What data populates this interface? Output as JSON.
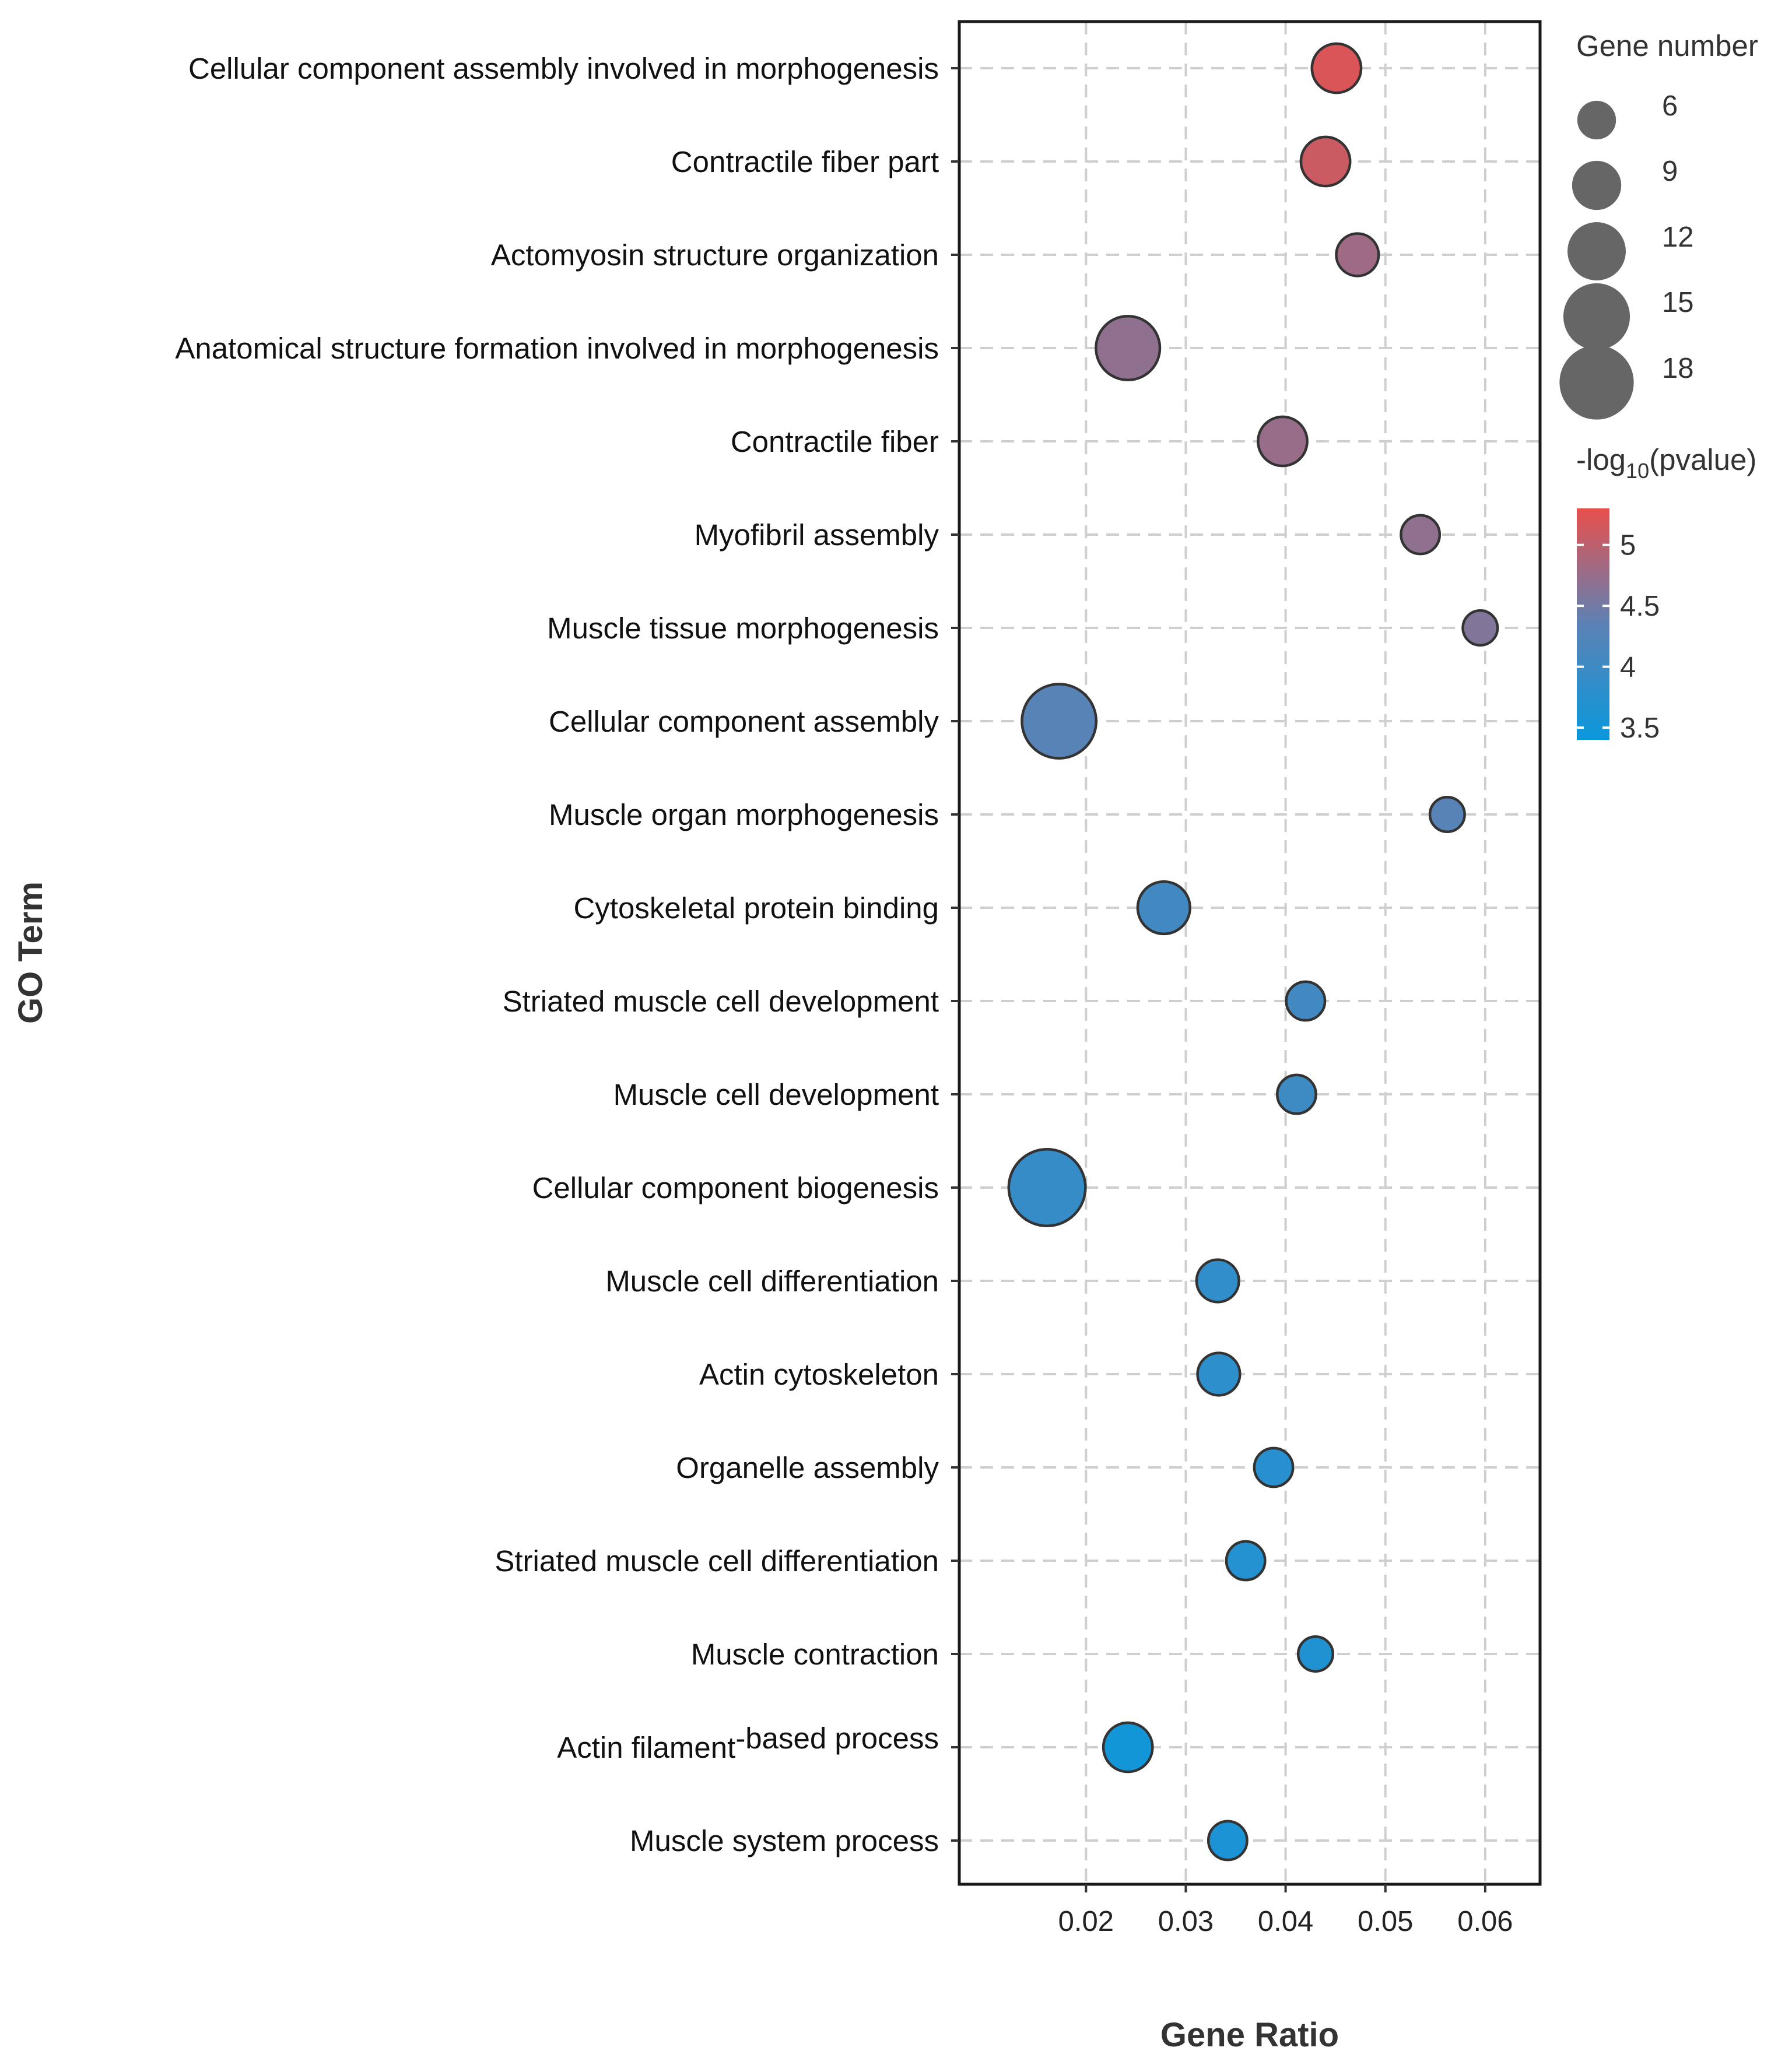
{
  "chart_data": {
    "type": "scatter",
    "subtype": "bubble",
    "title": "",
    "xlabel": "Gene Ratio",
    "ylabel": "GO Term",
    "xlim": [
      0.0073,
      0.0655
    ],
    "xticks": [
      0.02,
      0.03,
      0.04,
      0.05,
      0.06
    ],
    "xtick_labels": [
      "0.02",
      "0.03",
      "0.04",
      "0.05",
      "0.06"
    ],
    "grid": true,
    "points": [
      {
        "term": "Cellular component assembly involved in morphogenesis",
        "gene_ratio": 0.0451,
        "gene_number": 9,
        "neg_log10_p": 5.2
      },
      {
        "term": "Contractile fiber part",
        "gene_ratio": 0.044,
        "gene_number": 9,
        "neg_log10_p": 5.1
      },
      {
        "term": "Actomyosin structure organization",
        "gene_ratio": 0.0472,
        "gene_number": 7,
        "neg_log10_p": 4.8
      },
      {
        "term": "Anatomical structure formation involved in morphogenesis",
        "gene_ratio": 0.0242,
        "gene_number": 14,
        "neg_log10_p": 4.7
      },
      {
        "term": "Contractile fiber",
        "gene_ratio": 0.0397,
        "gene_number": 9,
        "neg_log10_p": 4.75
      },
      {
        "term": "Myofibril assembly",
        "gene_ratio": 0.0535,
        "gene_number": 6,
        "neg_log10_p": 4.7
      },
      {
        "term": "Muscle tissue morphogenesis",
        "gene_ratio": 0.0595,
        "gene_number": 5,
        "neg_log10_p": 4.6
      },
      {
        "term": "Cellular component assembly",
        "gene_ratio": 0.0173,
        "gene_number": 18,
        "neg_log10_p": 4.3
      },
      {
        "term": "Muscle organ morphogenesis",
        "gene_ratio": 0.0562,
        "gene_number": 5,
        "neg_log10_p": 4.3
      },
      {
        "term": "Cytoskeletal protein binding",
        "gene_ratio": 0.0278,
        "gene_number": 10,
        "neg_log10_p": 4.05
      },
      {
        "term": "Striated muscle cell development",
        "gene_ratio": 0.042,
        "gene_number": 6,
        "neg_log10_p": 4.05
      },
      {
        "term": "Muscle cell development",
        "gene_ratio": 0.0411,
        "gene_number": 6,
        "neg_log10_p": 4.0
      },
      {
        "term": "Cellular component biogenesis",
        "gene_ratio": 0.0161,
        "gene_number": 19,
        "neg_log10_p": 3.9
      },
      {
        "term": "Muscle cell differentiation",
        "gene_ratio": 0.0332,
        "gene_number": 7,
        "neg_log10_p": 3.85
      },
      {
        "term": "Actin cytoskeleton",
        "gene_ratio": 0.0333,
        "gene_number": 7,
        "neg_log10_p": 3.8
      },
      {
        "term": "Organelle assembly",
        "gene_ratio": 0.0388,
        "gene_number": 6,
        "neg_log10_p": 3.75
      },
      {
        "term": "Striated muscle cell differentiation",
        "gene_ratio": 0.036,
        "gene_number": 6,
        "neg_log10_p": 3.7
      },
      {
        "term": "Muscle contraction",
        "gene_ratio": 0.043,
        "gene_number": 5,
        "neg_log10_p": 3.65
      },
      {
        "term": "Actin filament-based process",
        "gene_ratio": 0.0242,
        "gene_number": 9,
        "neg_log10_p": 3.5
      },
      {
        "term": "Muscle system process",
        "gene_ratio": 0.0342,
        "gene_number": 6,
        "neg_log10_p": 3.6
      }
    ],
    "term_label_parts": {
      "Actin filament-based process": {
        "base": "Actin filament",
        "sup": "-based process"
      }
    },
    "size_legend": {
      "title": "Gene number",
      "values": [
        6,
        9,
        12,
        15,
        18
      ],
      "labels": [
        "6",
        "9",
        "12",
        "15",
        "18"
      ]
    },
    "color_legend": {
      "title_base": "-log",
      "title_sub": "10",
      "title_rest": "(pvalue)",
      "min": 3.4,
      "max": 5.3,
      "ticks": [
        3.5,
        4,
        4.5,
        5
      ],
      "tick_labels": [
        "3.5",
        "4",
        "4.5",
        "5"
      ],
      "colors": {
        "low": "#0a98dc",
        "mid": "#5c82b5",
        "high": "#e8504d"
      }
    },
    "point_outline_color": "#333333",
    "grid_color": "#cfcfcf"
  }
}
